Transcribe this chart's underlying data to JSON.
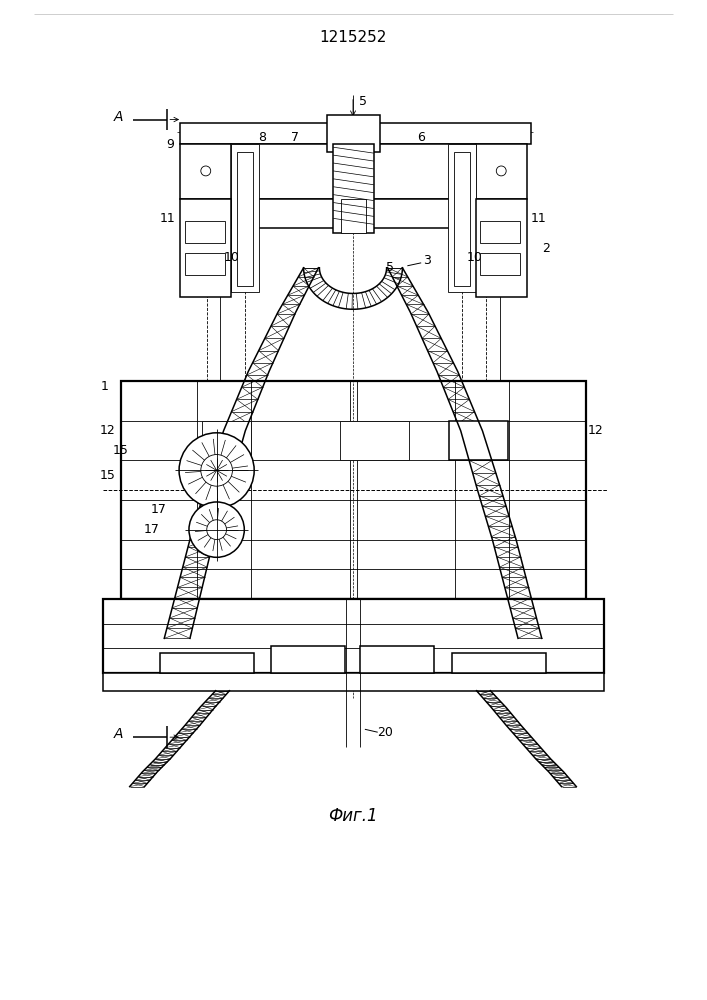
{
  "title": "1215252",
  "caption": "Фиг.1",
  "bg_color": "#ffffff",
  "line_color": "#000000",
  "lw_thin": 0.6,
  "lw_med": 1.1,
  "lw_thick": 1.6,
  "title_fontsize": 11,
  "caption_fontsize": 12,
  "fig_width": 7.07,
  "fig_height": 10.0,
  "dpi": 100
}
